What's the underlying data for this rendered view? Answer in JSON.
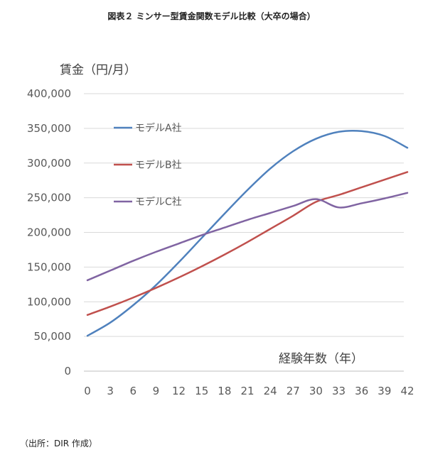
{
  "chart_data": {
    "type": "line",
    "title": "図表２ ミンサー型賃金関数モデル比較（大卒の場合）",
    "ylabel": "賃金（円/月）",
    "xlabel": "経験年数（年）",
    "source": "（出所：DIR 作成）",
    "ylim": [
      0,
      400000
    ],
    "xlim": [
      0,
      42
    ],
    "yticks": [
      0,
      50000,
      100000,
      150000,
      200000,
      250000,
      300000,
      350000,
      400000
    ],
    "ytick_labels": [
      "0",
      "50,000",
      "100,000",
      "150,000",
      "200,000",
      "250,000",
      "300,000",
      "350,000",
      "400,000"
    ],
    "xticks": [
      0,
      3,
      6,
      9,
      12,
      15,
      18,
      21,
      24,
      27,
      30,
      33,
      36,
      39,
      42
    ],
    "xtick_labels": [
      "0",
      "3",
      "6",
      "9",
      "12",
      "15",
      "18",
      "21",
      "24",
      "27",
      "30",
      "33",
      "36",
      "39",
      "42"
    ],
    "grid": true,
    "legend_position": "top-left",
    "x": [
      0,
      3,
      6,
      9,
      12,
      15,
      18,
      21,
      24,
      27,
      30,
      33,
      36,
      39,
      42
    ],
    "series": [
      {
        "name": "モデルA社",
        "color": "#4F81BD",
        "values": [
          51000,
          70000,
          95000,
          124000,
          157000,
          192000,
          227000,
          261000,
          292000,
          317000,
          335000,
          345000,
          346000,
          339000,
          322000
        ]
      },
      {
        "name": "モデルB社",
        "color": "#C0504D",
        "values": [
          81000,
          93000,
          106000,
          120000,
          135000,
          151000,
          168000,
          186000,
          205000,
          224000,
          244000,
          254000,
          265000,
          276000,
          287000
        ]
      },
      {
        "name": "モデルC社",
        "color": "#8064A2",
        "values": [
          131000,
          145000,
          159000,
          172000,
          184000,
          196000,
          207000,
          218000,
          228000,
          238000,
          248000,
          236000,
          242000,
          249000,
          257000
        ]
      }
    ]
  }
}
